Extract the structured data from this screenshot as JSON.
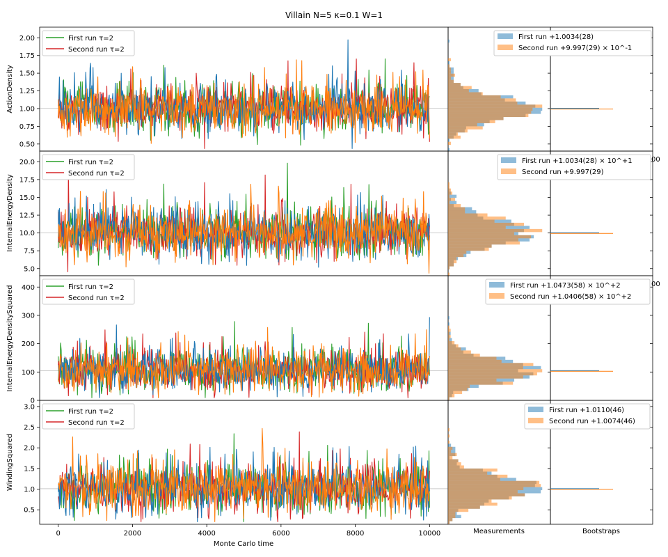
{
  "figure": {
    "title": "Villain N=5 κ=0.1 W=1"
  },
  "colors": {
    "first_hist": "#1f77b4",
    "second_hist": "#ff7f0e",
    "first_trace": "#2ca02c",
    "second_trace": "#d62728",
    "trace_first_run": "#1f77b4",
    "trace_second_run": "#ff7f0e",
    "hist_overlap": "#a0522d"
  },
  "chart_data": [
    {
      "type": "line",
      "ylabel": "ActionDensity",
      "xlim": [
        -500,
        10500
      ],
      "ylim": [
        0.4,
        2.15
      ],
      "yticks": [
        "0.50",
        "0.75",
        "1.00",
        "1.25",
        "1.50",
        "1.75",
        "2.00"
      ],
      "series": [
        {
          "name": "First run τ=2",
          "mean": 1.0034,
          "sd": 0.17
        },
        {
          "name": "Second run τ=2",
          "mean": 0.9997,
          "sd": 0.17
        }
      ],
      "hist_legend": [
        "First run +1.0034(28)",
        "Second run +9.997(29) × 10^-1"
      ]
    },
    {
      "type": "line",
      "ylabel": "InternalEnergyDensity",
      "xlim": [
        -500,
        10500
      ],
      "ylim": [
        4.0,
        21.5
      ],
      "yticks": [
        "5.0",
        "7.5",
        "10.0",
        "12.5",
        "15.0",
        "17.5",
        "20.0"
      ],
      "series": [
        {
          "name": "First run τ=2",
          "mean": 10.034,
          "sd": 1.7
        },
        {
          "name": "Second run τ=2",
          "mean": 9.997,
          "sd": 1.7
        }
      ],
      "hist_legend": [
        "First run +1.0034(28) × 10^+1",
        "Second run +9.997(29)"
      ]
    },
    {
      "type": "line",
      "ylabel": "InternalEnergyDensitySquared",
      "xlim": [
        -500,
        10500
      ],
      "ylim": [
        0,
        440
      ],
      "yticks": [
        "0",
        "100",
        "200",
        "300",
        "400"
      ],
      "series": [
        {
          "name": "First run τ=2",
          "mean": 104.73,
          "sd": 38
        },
        {
          "name": "Second run τ=2",
          "mean": 104.06,
          "sd": 38
        }
      ],
      "hist_legend": [
        "First run +1.0473(58) × 10^+2",
        "Second run +1.0406(58) × 10^+2"
      ]
    },
    {
      "type": "line",
      "ylabel": "WindingSquared",
      "xlabel": "Monte Carlo time",
      "xlim": [
        -500,
        10500
      ],
      "ylim": [
        0.15,
        3.15
      ],
      "yticks": [
        "0.5",
        "1.0",
        "1.5",
        "2.0",
        "2.5",
        "3.0"
      ],
      "xticks": [
        "0",
        "2000",
        "4000",
        "6000",
        "8000",
        "10000"
      ],
      "series": [
        {
          "name": "First run τ=2",
          "mean": 1.011,
          "sd": 0.3
        },
        {
          "name": "Second run τ=2",
          "mean": 1.0074,
          "sd": 0.3
        }
      ],
      "hist_legend": [
        "First run +1.0110(46)",
        "Second run +1.0074(46)"
      ]
    }
  ],
  "column_labels": {
    "measurements": "Measurements",
    "bootstraps": "Bootstraps"
  },
  "leaked_tick": "00"
}
